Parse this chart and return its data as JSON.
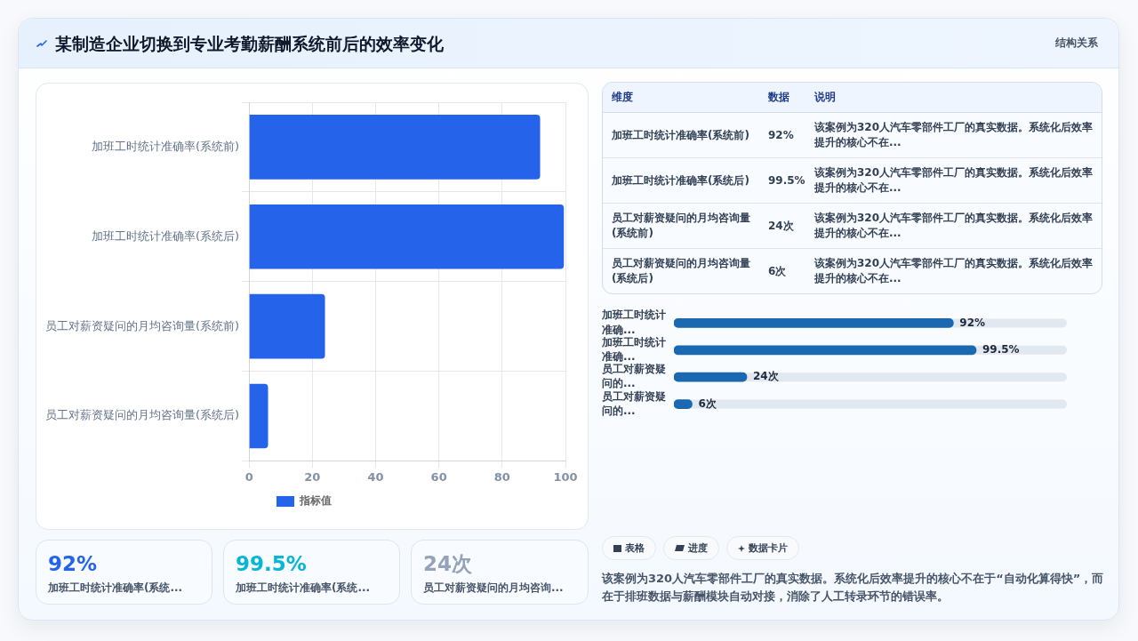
{
  "chart_data": [
    {
      "type": "bar",
      "title": "某制造企业切换到专业考勤薪酬系统前后的效率变化",
      "orientation": "horizontal",
      "categories": [
        "加班工时统计准确率(系统前)",
        "加班工时统计准确率(系统后)",
        "员工对薪资疑问的月均咨询量(系统前)",
        "员工对薪资疑问的月均咨询量(系统后)"
      ],
      "series": [
        {
          "name": "指标值",
          "color": "#2563eb",
          "values": [
            92,
            99.5,
            24,
            6
          ]
        }
      ],
      "xlim": [
        0,
        100
      ],
      "xticks": [
        0,
        20,
        40,
        60,
        80,
        100
      ],
      "grid": true,
      "legend": "bottom"
    },
    {
      "type": "bar",
      "orientation": "horizontal",
      "categories": [
        "加班工时统计准确...",
        "加班工时统计准确...",
        "员工对薪资疑问的...",
        "员工对薪资疑问的..."
      ],
      "series": [
        {
          "color": "#1a69b0",
          "values": [
            92,
            99.5,
            24,
            6
          ],
          "value_labels": [
            "92%",
            "99.5%",
            "24次",
            "6次"
          ]
        }
      ],
      "tick_labels": "y"
    },
    {
      "type": "other",
      "annotations": [
        "结构关系",
        "维度",
        "数据",
        "说明",
        "加班工时统计准确率(系统前)",
        "92%",
        "该案例为320人汽车零部件工厂的真实数据。系统化后效率提升的核心不在...",
        "加班工时统计准确率(系统后)",
        "99.5%",
        "该案例为320人汽车零部件工厂的真实数据。系统化后效率提升的核心不在...",
        "员工对薪资疑问的月均咨询量(系统前)",
        "24次",
        "该案例为320人汽车零部件工厂的真实数据。系统化后效率提升的核心不在...",
        "员工对薪资疑问的月均咨询量(系统后)",
        "6次",
        "该案例为320人汽车零部件工厂的真实数据。系统化后效率提升的核心不在...",
        "92%",
        "加班工时统计准确率(系统...",
        "99.5%",
        "加班工时统计准确率(系统...",
        "24次",
        "员工对薪资疑问的月均咨询...",
        "表格",
        "进度",
        "数据卡片",
        "该案例为320人汽车零部件工厂的真实数据。系统化后效率提升的核心不在于“自动化算得快”，而在于排班数据与薪酬模块自动对接，消除了人工转录环节的错误率。"
      ]
    }
  ]
}
